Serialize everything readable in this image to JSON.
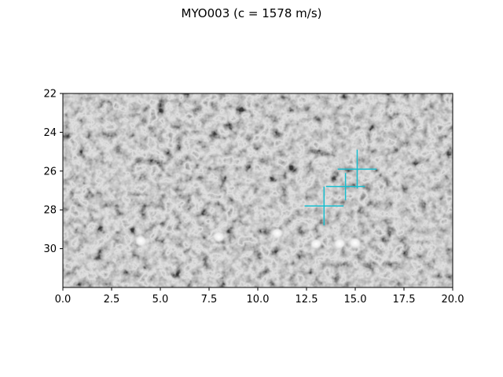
{
  "chart_data": {
    "type": "scatter",
    "title": "MYO003 (c = 1578 m/s)",
    "xlabel": "",
    "ylabel": "",
    "xlim": [
      0.0,
      20.0
    ],
    "ylim": [
      32.0,
      22.0
    ],
    "y_inverted": true,
    "background": "grayscale ultrasound speckle image",
    "grid": false,
    "x_ticks": [
      "0.0",
      "2.5",
      "5.0",
      "7.5",
      "10.0",
      "12.5",
      "15.0",
      "17.5",
      "20.0"
    ],
    "x_tick_values": [
      0.0,
      2.5,
      5.0,
      7.5,
      10.0,
      12.5,
      15.0,
      17.5,
      20.0
    ],
    "y_ticks": [
      "22",
      "24",
      "26",
      "28",
      "30"
    ],
    "y_tick_values": [
      22,
      24,
      26,
      28,
      30
    ],
    "bright_spots": [
      {
        "x": 4.0,
        "y": 29.6
      },
      {
        "x": 8.0,
        "y": 29.4
      },
      {
        "x": 11.0,
        "y": 29.2
      },
      {
        "x": 13.0,
        "y": 29.75
      },
      {
        "x": 14.2,
        "y": 29.75
      },
      {
        "x": 15.0,
        "y": 29.7
      }
    ],
    "markers": [
      {
        "x": 13.4,
        "y": 27.8,
        "xerr": 1.0,
        "yerr": 1.0
      },
      {
        "x": 14.5,
        "y": 26.8,
        "xerr": 1.0,
        "yerr": 0.7
      },
      {
        "x": 15.1,
        "y": 25.9,
        "xerr": 1.0,
        "yerr": 1.0
      }
    ],
    "marker_color": "#17becf"
  }
}
